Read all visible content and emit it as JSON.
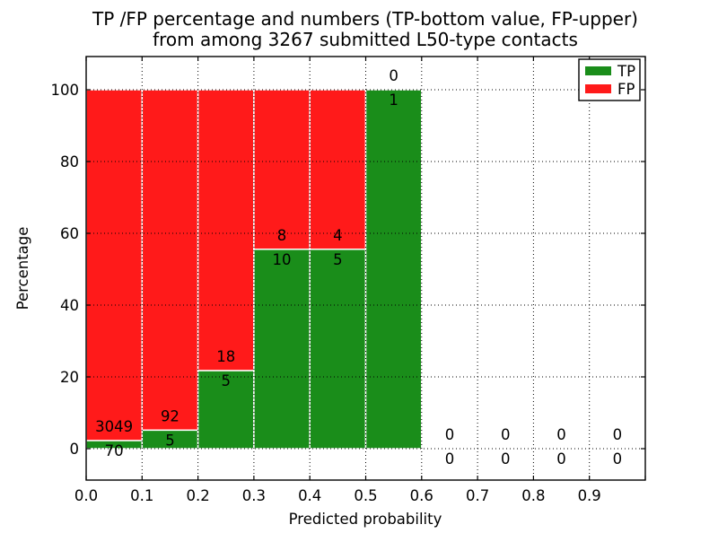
{
  "figure": {
    "title_line1": "TP /FP percentage and numbers (TP-bottom value, FP-upper)",
    "title_line2": "from among 3267 submitted L50-type contacts"
  },
  "chart_data": {
    "type": "bar",
    "stacked": true,
    "normalized_to": 100,
    "title": "TP /FP percentage and numbers (TP-bottom value, FP-upper)",
    "subtitle": "from among 3267 submitted L50-type contacts",
    "xlabel": "Predicted probability",
    "ylabel": "Percentage",
    "total_submitted_contacts": 3267,
    "x_bins": [
      [
        0.0,
        0.1
      ],
      [
        0.1,
        0.2
      ],
      [
        0.2,
        0.3
      ],
      [
        0.3,
        0.4
      ],
      [
        0.4,
        0.5
      ],
      [
        0.5,
        0.6
      ],
      [
        0.6,
        0.7
      ],
      [
        0.7,
        0.8
      ],
      [
        0.8,
        0.9
      ],
      [
        0.9,
        1.0
      ]
    ],
    "series": [
      {
        "name": "TP",
        "color": "#1a8d1a",
        "counts": [
          70,
          5,
          5,
          10,
          5,
          1,
          0,
          0,
          0,
          0
        ]
      },
      {
        "name": "FP",
        "color": "#ff1a1a",
        "counts": [
          3049,
          92,
          18,
          8,
          4,
          0,
          0,
          0,
          0,
          0
        ]
      }
    ],
    "tp_percent_of_bin": [
      2.24,
      5.15,
      21.74,
      55.56,
      55.56,
      100,
      0,
      0,
      0,
      0
    ],
    "xticks": [
      "0.0",
      "0.1",
      "0.2",
      "0.3",
      "0.4",
      "0.5",
      "0.6",
      "0.7",
      "0.8",
      "0.9"
    ],
    "yticks": [
      "0",
      "20",
      "40",
      "60",
      "80",
      "100"
    ],
    "xlim": [
      0,
      1.0
    ],
    "ylim": [
      -8.75,
      109.25
    ],
    "grid": "dotted",
    "grid_color": "#000000",
    "legend_position": "upper right",
    "bar_edge_color": "#ffffff",
    "axis_color": "#000000",
    "background_color": "#ffffff"
  }
}
